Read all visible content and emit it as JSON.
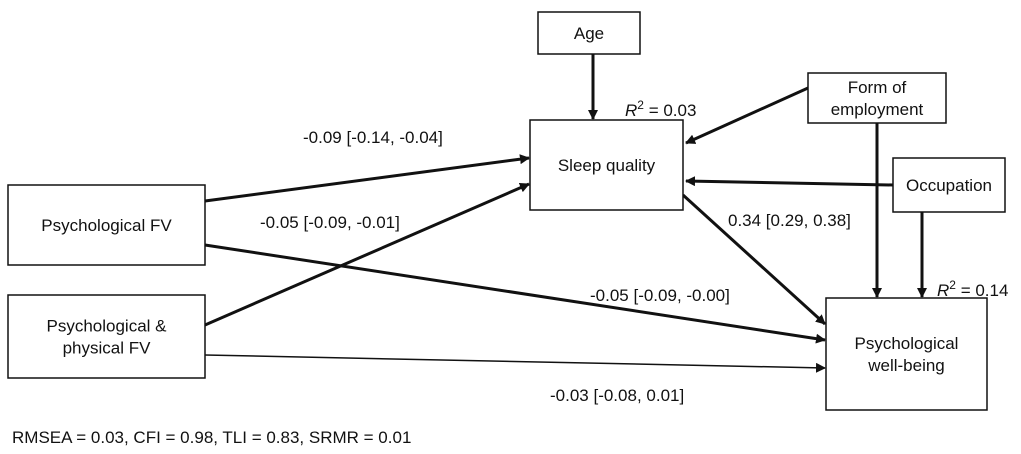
{
  "nodes": [
    {
      "id": "age",
      "label": [
        "Age"
      ]
    },
    {
      "id": "sleep",
      "label": [
        "Sleep quality"
      ]
    },
    {
      "id": "form",
      "label": [
        "Form of",
        "employment"
      ]
    },
    {
      "id": "occupation",
      "label": [
        "Occupation"
      ]
    },
    {
      "id": "psyfv",
      "label": [
        "Psychological FV"
      ]
    },
    {
      "id": "pphfv",
      "label": [
        "Psychological &",
        "physical FV"
      ]
    },
    {
      "id": "pwb",
      "label": [
        "Psychological",
        "well-being"
      ]
    }
  ],
  "edges": [
    {
      "label": "-0.09 [-0.14, -0.04]"
    },
    {
      "label": "-0.05 [-0.09, -0.01]"
    },
    {
      "label": "0.34 [0.29, 0.38]"
    },
    {
      "label": "-0.05 [-0.09, -0.00]"
    },
    {
      "label": "-0.03 [-0.08, 0.01]"
    }
  ],
  "r_squared": [
    {
      "symbol": "R",
      "exponent": "2",
      "text": " = 0.03"
    },
    {
      "symbol": "R",
      "exponent": "2",
      "text": " = 0.14"
    }
  ],
  "fit": "RMSEA = 0.03, CFI = 0.98, TLI = 0.83, SRMR = 0.01"
}
